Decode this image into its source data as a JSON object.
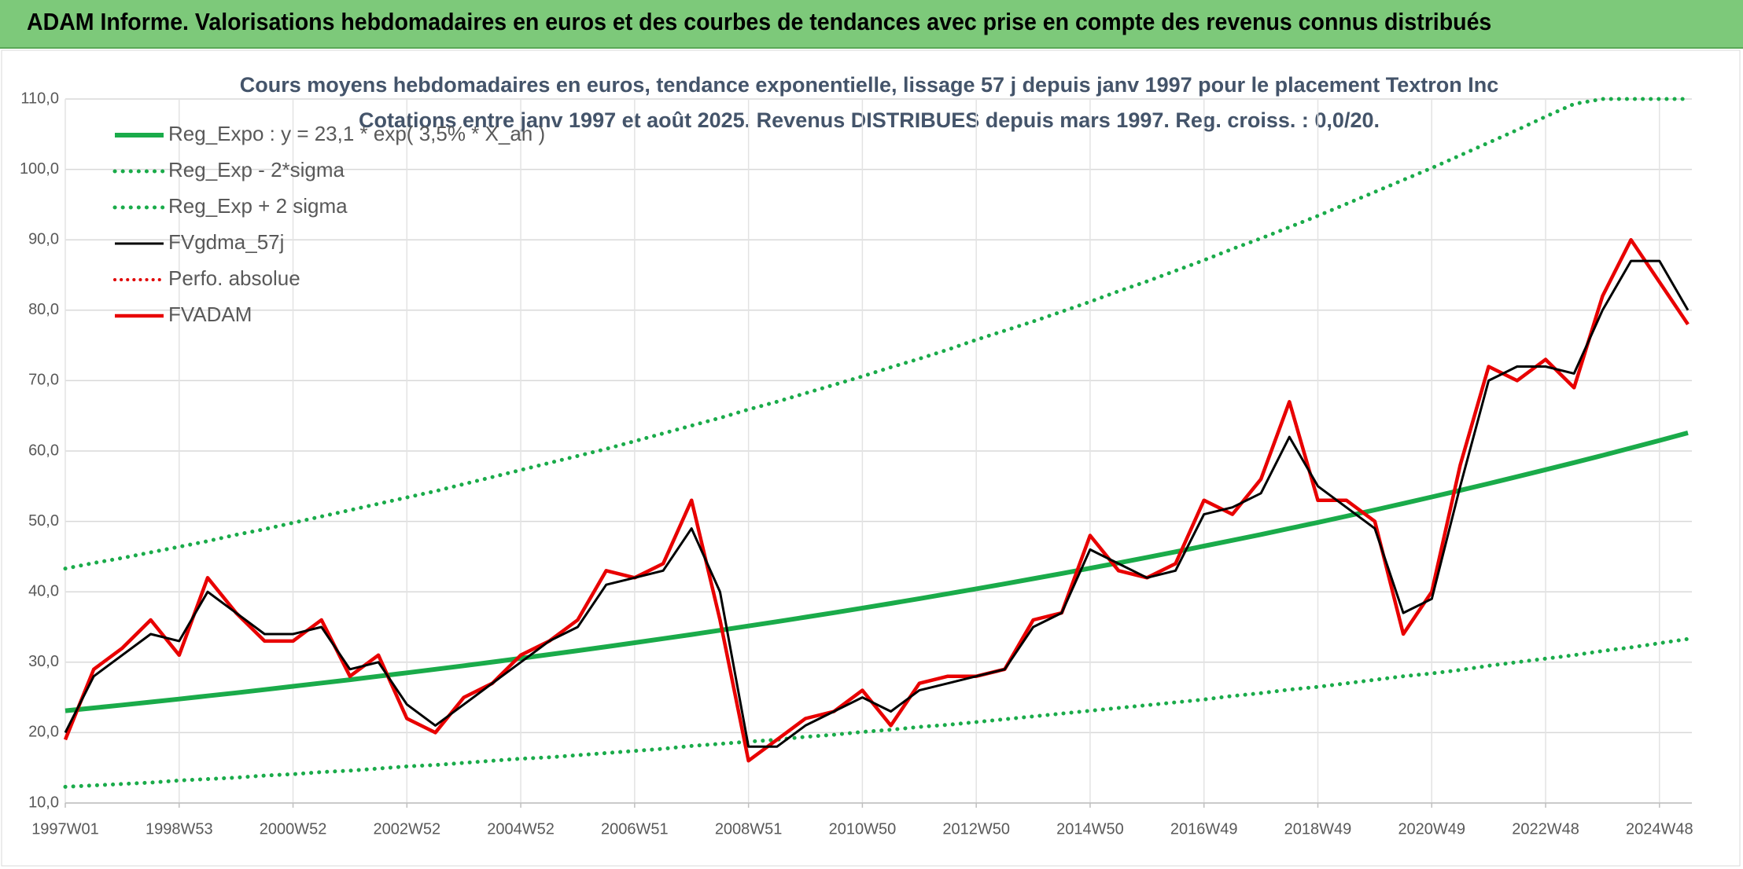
{
  "header": {
    "title": "ADAM Informe. Valorisations hebdomadaires en euros et des courbes de tendances avec prise en compte des revenus connus distribués"
  },
  "chart_data": {
    "type": "line",
    "title": "Cours moyens hebdomadaires en euros, tendance exponentielle, lissage 57 j depuis janv 1997 pour le placement Textron Inc",
    "subtitle": "Cotations entre janv 1997 et août 2025. Revenus DISTRIBUES depuis mars 1997. Reg. croiss. : 0,0/20.",
    "categories": [
      "1997W01",
      null,
      null,
      null,
      "1998W53",
      null,
      null,
      null,
      "2000W52",
      null,
      null,
      null,
      "2002W52",
      null,
      null,
      null,
      "2004W52",
      null,
      null,
      null,
      "2006W51",
      null,
      null,
      null,
      "2008W51",
      null,
      null,
      null,
      "2010W50",
      null,
      null,
      null,
      "2012W50",
      null,
      null,
      null,
      "2014W50",
      null,
      null,
      null,
      "2016W49",
      null,
      null,
      null,
      "2018W49",
      null,
      null,
      null,
      "2020W49",
      null,
      null,
      null,
      "2022W48",
      null,
      null,
      null,
      "2024W48",
      null
    ],
    "ylim": [
      10,
      110
    ],
    "yticks": [
      {
        "value": 10,
        "label": "10,0"
      },
      {
        "value": 20,
        "label": "20,0"
      },
      {
        "value": 30,
        "label": "30,0"
      },
      {
        "value": 40,
        "label": "40,0"
      },
      {
        "value": 50,
        "label": "50,0"
      },
      {
        "value": 60,
        "label": "60,0"
      },
      {
        "value": 70,
        "label": "70,0"
      },
      {
        "value": 80,
        "label": "80,0"
      },
      {
        "value": 90,
        "label": "90,0"
      },
      {
        "value": 100,
        "label": "100,0"
      },
      {
        "value": 110,
        "label": "110,0"
      }
    ],
    "grid": true,
    "legend": "upper-left",
    "series": [
      {
        "name": "Reg_Expo : y = 23,1 * exp( 3,5% *  X_an )",
        "color": "#1aab4a",
        "dotted": false,
        "width": 6,
        "values": [
          23.1,
          23.51,
          23.92,
          24.34,
          24.77,
          25.21,
          25.65,
          26.11,
          26.57,
          27.04,
          27.51,
          28.0,
          28.49,
          28.99,
          29.5,
          30.02,
          30.55,
          31.09,
          31.64,
          32.2,
          32.77,
          33.35,
          33.93,
          34.53,
          35.14,
          35.76,
          36.39,
          37.03,
          37.69,
          38.35,
          39.03,
          39.72,
          40.42,
          41.13,
          41.86,
          42.6,
          43.35,
          44.11,
          44.89,
          45.68,
          46.49,
          47.31,
          48.14,
          48.99,
          49.86,
          50.74,
          51.63,
          52.54,
          53.47,
          54.41,
          55.37,
          56.35,
          57.34,
          58.35,
          59.38,
          60.43,
          61.5,
          62.58
        ]
      },
      {
        "name": "Reg_Exp - 2*sigma",
        "color": "#1aab4a",
        "dotted": true,
        "width": 5,
        "values": [
          12.3,
          12.5,
          12.7,
          12.9,
          13.2,
          13.4,
          13.6,
          13.9,
          14.1,
          14.4,
          14.6,
          14.9,
          15.2,
          15.4,
          15.7,
          16.0,
          16.3,
          16.5,
          16.8,
          17.1,
          17.4,
          17.7,
          18.1,
          18.4,
          18.7,
          19.0,
          19.4,
          19.7,
          20.1,
          20.4,
          20.8,
          21.1,
          21.5,
          21.9,
          22.3,
          22.7,
          23.1,
          23.5,
          23.9,
          24.3,
          24.7,
          25.2,
          25.6,
          26.1,
          26.5,
          27.0,
          27.5,
          28.0,
          28.4,
          28.9,
          29.5,
          30.0,
          30.5,
          31.0,
          31.6,
          32.1,
          32.7,
          33.3
        ]
      },
      {
        "name": "Reg_Exp + 2 sigma",
        "color": "#1aab4a",
        "dotted": true,
        "width": 5,
        "values": [
          43.3,
          44.1,
          44.8,
          45.6,
          46.4,
          47.2,
          48.1,
          48.9,
          49.8,
          50.7,
          51.6,
          52.5,
          53.4,
          54.3,
          55.3,
          56.3,
          57.3,
          58.3,
          59.3,
          60.3,
          61.4,
          62.5,
          63.6,
          64.7,
          65.9,
          67.0,
          68.2,
          69.4,
          70.6,
          71.9,
          73.1,
          74.4,
          75.8,
          77.1,
          78.4,
          79.8,
          81.2,
          82.7,
          84.1,
          85.6,
          87.1,
          88.7,
          90.2,
          91.8,
          93.4,
          95.1,
          96.8,
          98.5,
          100.2,
          102.0,
          103.8,
          105.6,
          107.5,
          109.3,
          110,
          110,
          110,
          110
        ]
      },
      {
        "name": "FVgdma_57j",
        "color": "#000000",
        "dotted": false,
        "width": 3,
        "values": [
          20,
          28,
          31,
          34,
          33,
          40,
          37,
          34,
          34,
          35,
          29,
          30,
          24,
          21,
          24,
          27,
          30,
          33,
          35,
          41,
          42,
          43,
          49,
          40,
          18,
          18,
          21,
          23,
          25,
          23,
          26,
          27,
          28,
          29,
          35,
          37,
          46,
          44,
          42,
          43,
          51,
          52,
          54,
          62,
          55,
          52,
          49,
          37,
          39,
          55,
          70,
          72,
          72,
          71,
          80,
          87,
          87,
          80
        ]
      },
      {
        "name": "Perfo. absolue",
        "color": "#e00000",
        "dotted": true,
        "width": 4,
        "values": [
          null,
          null,
          null,
          null,
          null,
          null,
          null,
          null,
          null,
          null,
          null,
          null,
          null,
          null,
          null,
          null,
          null,
          null,
          null,
          null,
          null,
          null,
          null,
          null,
          null,
          null,
          null,
          null,
          null,
          null,
          null,
          null,
          null,
          null,
          null,
          null,
          null,
          null,
          null,
          null,
          null,
          null,
          null,
          null,
          null,
          null,
          null,
          null,
          null,
          null,
          null,
          null,
          null,
          null,
          null,
          null,
          null,
          null
        ]
      },
      {
        "name": "FVADAM",
        "color": "#e80000",
        "dotted": false,
        "width": 4.5,
        "values": [
          19,
          29,
          32,
          36,
          31,
          42,
          37,
          33,
          33,
          36,
          28,
          31,
          22,
          20,
          25,
          27,
          31,
          33,
          36,
          43,
          42,
          44,
          53,
          36,
          16,
          19,
          22,
          23,
          26,
          21,
          27,
          28,
          28,
          29,
          36,
          37,
          48,
          43,
          42,
          44,
          53,
          51,
          56,
          67,
          53,
          53,
          50,
          34,
          40,
          58,
          72,
          70,
          73,
          69,
          82,
          90,
          84,
          78
        ]
      }
    ]
  }
}
